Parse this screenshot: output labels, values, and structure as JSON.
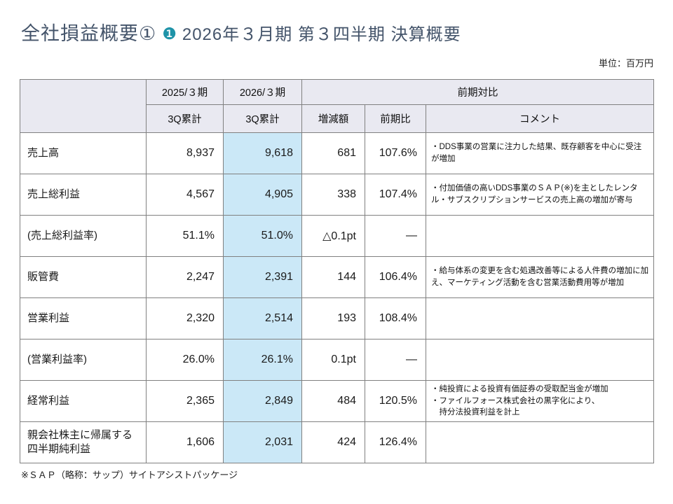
{
  "header": {
    "title_main": "全社損益概要①",
    "badge": "❶",
    "title_sub": "2026年３月期 第３四半期 決算概要",
    "unit_label": "単位：百万円"
  },
  "table": {
    "head": {
      "col_prev": "2025/３期",
      "col_curr": "2026/３期",
      "group_comparison": "前期対比",
      "sub_prev": "3Q累計",
      "sub_curr": "3Q累計",
      "col_change": "増減額",
      "col_yoy": "前期比",
      "col_comment": "コメント"
    },
    "rows": [
      {
        "label": "売上高",
        "prev": "8,937",
        "curr": "9,618",
        "change": "681",
        "yoy": "107.6%",
        "comment": "・DDS事業の営業に注力した結果、既存顧客を中心に受注が増加"
      },
      {
        "label": "売上総利益",
        "prev": "4,567",
        "curr": "4,905",
        "change": "338",
        "yoy": "107.4%",
        "comment": "・付加価値の高いDDS事業のＳＡＰ(※)を主としたレンタル・サブスクリプションサービスの売上高の増加が寄与"
      },
      {
        "label": "(売上総利益率)",
        "prev": "51.1%",
        "curr": "51.0%",
        "change": "△0.1pt",
        "yoy": "―",
        "comment": ""
      },
      {
        "label": "販管費",
        "prev": "2,247",
        "curr": "2,391",
        "change": "144",
        "yoy": "106.4%",
        "comment": "・給与体系の変更を含む処遇改善等による人件費の増加に加え、マーケティング活動を含む営業活動費用等が増加"
      },
      {
        "label": "営業利益",
        "prev": "2,320",
        "curr": "2,514",
        "change": "193",
        "yoy": "108.4%",
        "comment": ""
      },
      {
        "label": "(営業利益率)",
        "prev": "26.0%",
        "curr": "26.1%",
        "change": "0.1pt",
        "yoy": "―",
        "comment": ""
      },
      {
        "label": "経常利益",
        "prev": "2,365",
        "curr": "2,849",
        "change": "484",
        "yoy": "120.5%",
        "comment": "・純投資による投資有価証券の受取配当金が増加\n・ファイルフォース株式会社の黒字化により、\n　持分法投資利益を計上"
      },
      {
        "label": "親会社株主に帰属する四半期純利益",
        "prev": "1,606",
        "curr": "2,031",
        "change": "424",
        "yoy": "126.4%",
        "comment": ""
      }
    ]
  },
  "footer": {
    "note": "※ＳＡＰ（略称：サップ）サイトアシストパッケージ"
  }
}
